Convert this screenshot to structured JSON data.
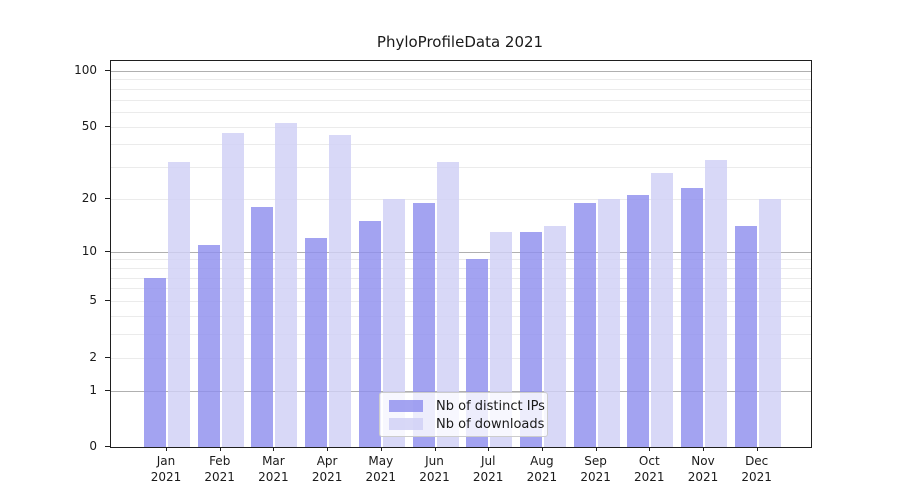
{
  "title": "PhyloProfileData 2021",
  "chart_data": {
    "type": "bar",
    "title": "PhyloProfileData 2021",
    "scale": "log1p",
    "grid": true,
    "legend_position": "lower-center",
    "categories": [
      "Jan 2021",
      "Feb 2021",
      "Mar 2021",
      "Apr 2021",
      "May 2021",
      "Jun 2021",
      "Jul 2021",
      "Aug 2021",
      "Sep 2021",
      "Oct 2021",
      "Nov 2021",
      "Dec 2021"
    ],
    "series": [
      {
        "name": "Nb of distinct IPs",
        "color": "#8f8fee",
        "values": [
          7,
          11,
          18,
          12,
          15,
          19,
          9,
          13,
          19,
          21,
          23,
          14
        ]
      },
      {
        "name": "Nb of downloads",
        "color": "#d0d0f5",
        "values": [
          32,
          46,
          52,
          45,
          20,
          32,
          13,
          14,
          20,
          28,
          33,
          20
        ]
      }
    ],
    "xlabel": "",
    "ylabel": "",
    "ylim": [
      0,
      113
    ],
    "y_tick_values": [
      0,
      1,
      2,
      5,
      10,
      20,
      50,
      100
    ],
    "y_tick_labels": [
      "0",
      "1",
      "2",
      "5",
      "10",
      "20",
      "50",
      "100"
    ],
    "y_major_gridlines": [
      1,
      10,
      100
    ],
    "y_minor_gridlines": [
      2,
      3,
      4,
      5,
      6,
      7,
      8,
      9,
      20,
      30,
      40,
      50,
      60,
      70,
      80,
      90
    ]
  },
  "colors": {
    "bar_opacity": 0.82,
    "grid_minor": "#ebebeb",
    "grid_major": "#b0b0b0",
    "spine": "#1f1f1f",
    "text": "#1a1a1a",
    "legend_bg": "rgba(255,255,255,0.8)",
    "legend_border": "#cccccc"
  }
}
